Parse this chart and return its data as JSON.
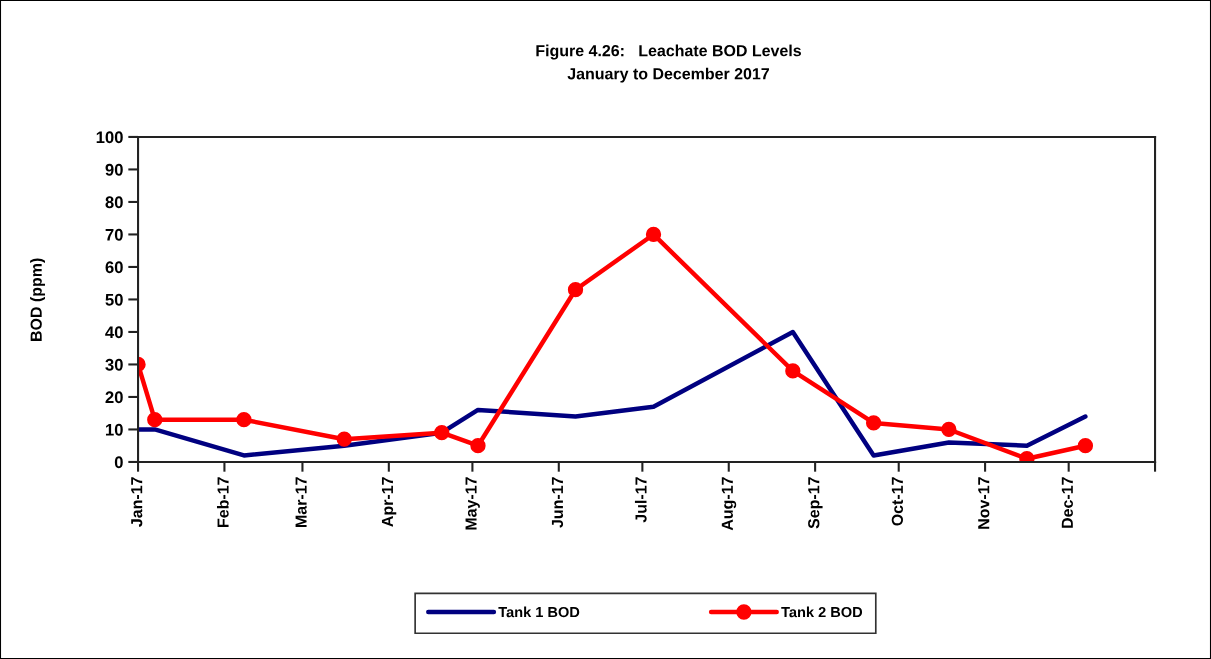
{
  "chart_data": {
    "type": "line",
    "title": "Figure 4.26:   Leachate BOD Levels",
    "subtitle": "January to December 2017",
    "ylabel": "BOD (ppm)",
    "x": [
      "2017-01-01",
      "2017-01-07",
      "2017-02-08",
      "2017-03-16",
      "2017-04-20",
      "2017-05-03",
      "2017-06-07",
      "2017-07-05",
      "2017-08-24",
      "2017-09-22",
      "2017-10-19",
      "2017-11-16",
      "2017-12-07"
    ],
    "series": [
      {
        "name": "Tank 1 BOD",
        "color": "#000080",
        "marker": "none",
        "values": [
          10,
          10,
          2,
          5,
          9,
          16,
          14,
          17,
          40,
          2,
          6,
          5,
          14
        ]
      },
      {
        "name": "Tank 2 BOD",
        "color": "#ff0000",
        "marker": "circle",
        "values": [
          30,
          13,
          13,
          7,
          9,
          5,
          53,
          70,
          28,
          12,
          10,
          1,
          5
        ]
      }
    ],
    "xlim": [
      "2017-01-01",
      "2018-01-01"
    ],
    "xticks": [
      {
        "value": "2017-01-01",
        "label": "Jan-17"
      },
      {
        "value": "2017-02-01",
        "label": "Feb-17"
      },
      {
        "value": "2017-03-01",
        "label": "Mar-17"
      },
      {
        "value": "2017-04-01",
        "label": "Apr-17"
      },
      {
        "value": "2017-05-01",
        "label": "May-17"
      },
      {
        "value": "2017-06-01",
        "label": "Jun-17"
      },
      {
        "value": "2017-07-01",
        "label": "Jul-17"
      },
      {
        "value": "2017-08-01",
        "label": "Aug-17"
      },
      {
        "value": "2017-09-01",
        "label": "Sep-17"
      },
      {
        "value": "2017-10-01",
        "label": "Oct-17"
      },
      {
        "value": "2017-11-01",
        "label": "Nov-17"
      },
      {
        "value": "2017-12-01",
        "label": "Dec-17"
      },
      {
        "value": "2018-01-01",
        "label": null
      }
    ],
    "ylim": [
      0,
      100
    ],
    "yticks": [
      0,
      10,
      20,
      30,
      40,
      50,
      60,
      70,
      80,
      90,
      100
    ],
    "grid": false,
    "legend": "bottom",
    "line_style": "solid"
  }
}
